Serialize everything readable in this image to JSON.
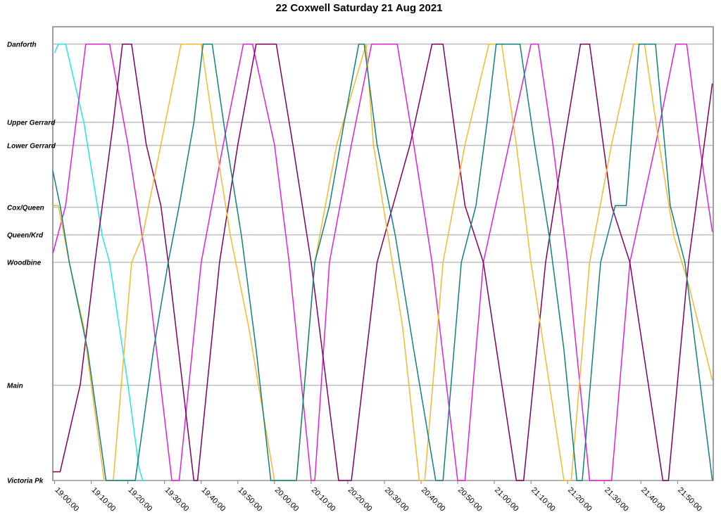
{
  "chart_data": {
    "type": "line",
    "title": "22 Coxwell Saturday 21 Aug 2021",
    "xlim": [
      "18:59:30",
      "21:59:45"
    ],
    "xticks": [
      "19:00:00",
      "19:10:00",
      "19:20:00",
      "19:30:00",
      "19:40:00",
      "19:50:00",
      "20:00:00",
      "20:10:00",
      "20:20:00",
      "20:30:00",
      "20:40:00",
      "20:50:00",
      "21:00:00",
      "21:10:00",
      "21:20:00",
      "21:30:00",
      "21:40:00",
      "21:50:00"
    ],
    "ylim": [
      0,
      104
    ],
    "yticks": [
      {
        "value": 0,
        "label": "Victoria Pk"
      },
      {
        "value": 21.8,
        "label": "Main"
      },
      {
        "value": 50,
        "label": "Woodbine"
      },
      {
        "value": 56.3,
        "label": "Queen/Krd"
      },
      {
        "value": 62.6,
        "label": "Cox/Queen"
      },
      {
        "value": 76.8,
        "label": "Lower Gerrard"
      },
      {
        "value": 82.1,
        "label": "Upper Gerrard"
      },
      {
        "value": 100,
        "label": "Danforth"
      }
    ],
    "grid": true,
    "series": [
      {
        "color": "#20e8e8",
        "x": [
          "19:00:00",
          "19:01:00",
          "19:03:00",
          "19:08:00",
          "19:13:00",
          "19:15:00",
          "19:20:00",
          "19:23:00",
          "19:24:00",
          "19:25:00"
        ],
        "values": [
          98,
          100,
          100,
          82,
          56,
          50,
          22,
          3,
          0,
          0
        ]
      },
      {
        "color": "#e020d8",
        "x": [
          "18:59:30",
          "19:03:00",
          "19:08:30",
          "19:15:00",
          "19:20:00",
          "19:25:00",
          "19:32:00",
          "19:34:00",
          "19:40:00",
          "19:46:00",
          "19:51:30",
          "19:54:00",
          "20:00:00",
          "20:04:00",
          "20:10:00",
          "20:11:00",
          "20:15:00",
          "20:21:00",
          "20:26:30",
          "20:33:30",
          "20:38:00",
          "20:43:00",
          "20:50:00",
          "20:52:00",
          "20:57:00",
          "21:04:00",
          "21:10:00",
          "21:12:00",
          "21:16:00",
          "21:20:00",
          "21:26:00",
          "21:32:00",
          "21:37:00",
          "21:44:00",
          "21:49:30",
          "21:52:30",
          "21:56:00",
          "21:59:30"
        ],
        "values": [
          52,
          63,
          100,
          100,
          77,
          50,
          0,
          0,
          50,
          77,
          100,
          100,
          77,
          50,
          0,
          0,
          50,
          77,
          100,
          100,
          77,
          50,
          0,
          0,
          50,
          77,
          100,
          100,
          77,
          50,
          0,
          0,
          50,
          77,
          100,
          100,
          77,
          57
        ]
      },
      {
        "color": "#800060",
        "x": [
          "18:59:30",
          "19:01:30",
          "19:07:00",
          "19:11:00",
          "19:13:00",
          "19:16:00",
          "19:18:30",
          "19:21:00",
          "19:25:00",
          "19:29:00",
          "19:31:00",
          "19:38:00",
          "19:39:00",
          "19:45:00",
          "19:50:00",
          "19:55:00",
          "20:00:30",
          "20:05:00",
          "20:10:00",
          "20:17:30",
          "20:21:00",
          "20:28:00",
          "20:37:00",
          "20:43:00",
          "20:46:00",
          "20:52:00",
          "20:57:00",
          "21:06:00",
          "21:08:00",
          "21:14:00",
          "21:19:00",
          "21:23:30",
          "21:26:00",
          "21:32:00",
          "21:37:00",
          "21:46:00",
          "21:47:30",
          "21:53:00",
          "21:59:30"
        ],
        "values": [
          2,
          2,
          22,
          50,
          63,
          82,
          100,
          100,
          77,
          63,
          50,
          0,
          0,
          50,
          77,
          100,
          100,
          77,
          50,
          0,
          0,
          50,
          77,
          100,
          100,
          63,
          50,
          0,
          0,
          50,
          77,
          100,
          100,
          63,
          50,
          0,
          0,
          50,
          91
        ]
      },
      {
        "color": "#f5b82e",
        "x": [
          "18:59:30",
          "19:01:00",
          "19:04:00",
          "19:08:00",
          "19:10:00",
          "19:13:30",
          "19:16:00",
          "19:21:00",
          "19:24:00",
          "19:29:00",
          "19:34:30",
          "19:40:00",
          "19:44:00",
          "19:48:00",
          "19:53:00",
          "20:00:00",
          "20:06:00",
          "20:11:00",
          "20:17:00",
          "20:25:00",
          "20:27:00",
          "20:31:00",
          "20:35:00",
          "20:39:30",
          "20:41:00",
          "20:46:00",
          "20:52:00",
          "20:58:30",
          "21:02:00",
          "21:06:00",
          "21:10:00",
          "21:19:00",
          "21:21:00",
          "21:26:00",
          "21:32:00",
          "21:38:00",
          "21:41:00",
          "21:45:00",
          "21:49:00",
          "21:53:00",
          "21:59:30"
        ],
        "values": [
          63,
          63,
          50,
          35,
          22,
          0,
          0,
          50,
          56,
          77,
          100,
          100,
          77,
          56,
          35,
          0,
          0,
          50,
          77,
          100,
          77,
          56,
          35,
          0,
          0,
          50,
          77,
          100,
          100,
          77,
          50,
          0,
          0,
          50,
          77,
          100,
          100,
          77,
          56,
          45,
          23
        ]
      },
      {
        "color": "#108080",
        "x": [
          "18:59:30",
          "19:01:30",
          "19:04:00",
          "19:09:00",
          "19:14:00",
          "19:22:00",
          "19:27:00",
          "19:31:00",
          "19:34:00",
          "19:38:00",
          "19:40:30",
          "19:43:00",
          "19:47:00",
          "19:51:00",
          "19:55:00",
          "19:59:00",
          "20:06:00",
          "20:11:00",
          "20:15:00",
          "20:19:00",
          "20:23:00",
          "20:24:30",
          "20:28:00",
          "20:33:00",
          "20:38:00",
          "20:44:00",
          "20:46:00",
          "20:51:00",
          "20:55:00",
          "20:58:00",
          "21:00:30",
          "21:07:00",
          "21:11:00",
          "21:15:00",
          "21:19:00",
          "21:22:30",
          "21:24:00",
          "21:29:00",
          "21:33:00",
          "21:36:00",
          "21:39:30",
          "21:44:00",
          "21:48:00",
          "21:52:00",
          "21:59:30"
        ],
        "values": [
          71,
          63,
          50,
          30,
          0,
          0,
          30,
          50,
          63,
          82,
          100,
          100,
          77,
          56,
          30,
          0,
          0,
          50,
          63,
          82,
          100,
          100,
          77,
          56,
          30,
          0,
          0,
          50,
          63,
          82,
          100,
          100,
          77,
          56,
          30,
          0,
          0,
          50,
          63,
          63,
          100,
          100,
          63,
          50,
          0
        ]
      }
    ]
  }
}
